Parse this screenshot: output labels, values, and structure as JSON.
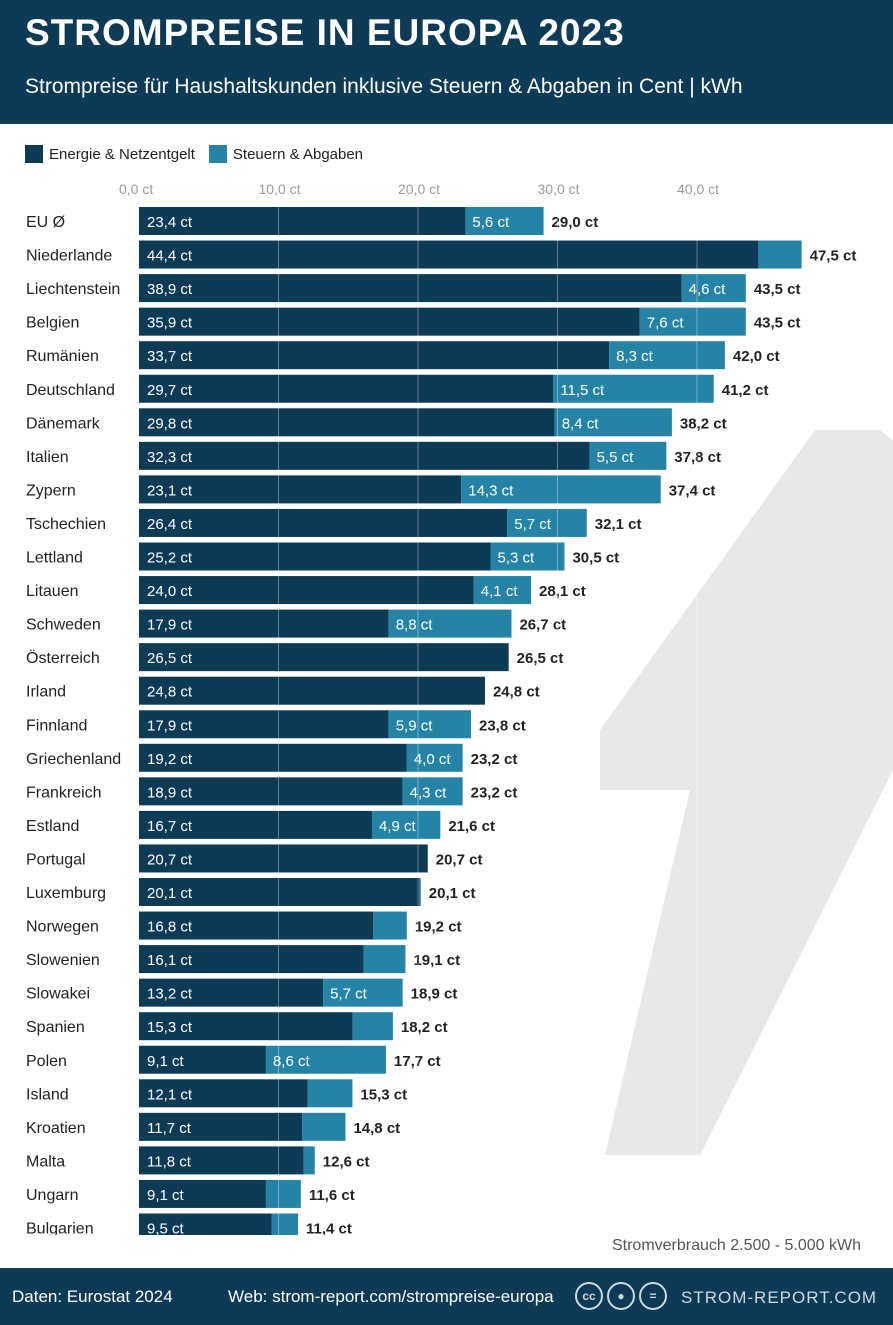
{
  "header": {
    "title": "STROMPREISE IN EUROPA 2023",
    "subtitle": "Strompreise für Haushaltskunden inklusive Steuern & Abgaben in Cent | kWh"
  },
  "colors": {
    "dark": "#0d3a55",
    "light": "#2584a6",
    "header": "#0d3a55"
  },
  "legend": {
    "energy": "Energie & Netzentgelt",
    "taxes": "Steuern & Abgaben"
  },
  "chart_data": {
    "type": "bar",
    "orientation": "horizontal",
    "stacked": true,
    "xlim": [
      0,
      47.5
    ],
    "ticks": [
      0,
      10,
      20,
      30,
      40
    ],
    "tick_labels": [
      "0,0 ct",
      "10,0 ct",
      "20,0 ct",
      "30,0 ct",
      "40,0 ct"
    ],
    "categories": [
      "EU Ø",
      "Niederlande",
      "Liechtenstein",
      "Belgien",
      "Rumänien",
      "Deutschland",
      "Dänemark",
      "Italien",
      "Zypern",
      "Tschechien",
      "Lettland",
      "Litauen",
      "Schweden",
      "Österreich",
      "Irland",
      "Finnland",
      "Griechenland",
      "Frankreich",
      "Estland",
      "Portugal",
      "Luxemburg",
      "Norwegen",
      "Slowenien",
      "Slowakei",
      "Spanien",
      "Polen",
      "Island",
      "Kroatien",
      "Malta",
      "Ungarn",
      "Bulgarien"
    ],
    "series": [
      {
        "name": "Energie & Netzentgelt",
        "values": [
          23.4,
          44.4,
          38.9,
          35.9,
          33.7,
          29.7,
          29.8,
          32.3,
          23.1,
          26.4,
          25.2,
          24.0,
          17.9,
          26.5,
          24.8,
          17.9,
          19.2,
          18.9,
          16.7,
          20.7,
          20.1,
          16.8,
          16.1,
          13.2,
          15.3,
          9.1,
          12.1,
          11.7,
          11.8,
          9.1,
          9.5
        ],
        "labels": [
          "23,4 ct",
          "44,4 ct",
          "38,9 ct",
          "35,9 ct",
          "33,7 ct",
          "29,7 ct",
          "29,8 ct",
          "32,3 ct",
          "23,1 ct",
          "26,4 ct",
          "25,2 ct",
          "24,0 ct",
          "17,9 ct",
          "26,5 ct",
          "24,8 ct",
          "17,9 ct",
          "19,2 ct",
          "18,9 ct",
          "16,7 ct",
          "20,7 ct",
          "20,1 ct",
          "16,8 ct",
          "16,1 ct",
          "13,2 ct",
          "15,3 ct",
          "9,1 ct",
          "12,1 ct",
          "11,7 ct",
          "11,8 ct",
          "9,1 ct",
          "9,5 ct"
        ]
      },
      {
        "name": "Steuern & Abgaben",
        "values": [
          5.6,
          3.1,
          4.6,
          7.6,
          8.3,
          11.5,
          8.4,
          5.5,
          14.3,
          5.7,
          5.3,
          4.1,
          8.8,
          0,
          0,
          5.9,
          4.0,
          4.3,
          4.9,
          0,
          0.1,
          2.4,
          3.0,
          5.7,
          2.9,
          8.6,
          3.2,
          3.1,
          0.8,
          2.5,
          1.9
        ],
        "labels": [
          "5,6 ct",
          "",
          "4,6 ct",
          "7,6 ct",
          "8,3 ct",
          "11,5 ct",
          "8,4 ct",
          "5,5 ct",
          "14,3 ct",
          "5,7 ct",
          "5,3 ct",
          "4,1 ct",
          "8,8 ct",
          "",
          "",
          "5,9 ct",
          "4,0 ct",
          "4,3 ct",
          "4,9 ct",
          "",
          "",
          "",
          "",
          "5,7 ct",
          "",
          "8,6 ct",
          "",
          "",
          "",
          "",
          ""
        ]
      }
    ],
    "totals": [
      "29,0 ct",
      "47,5 ct",
      "43,5 ct",
      "43,5 ct",
      "42,0 ct",
      "41,2 ct",
      "38,2 ct",
      "37,8 ct",
      "37,4 ct",
      "32,1 ct",
      "30,5 ct",
      "28,1 ct",
      "26,7 ct",
      "26,5 ct",
      "24,8 ct",
      "23,8 ct",
      "23,2 ct",
      "23,2 ct",
      "21,6 ct",
      "20,7 ct",
      "20,1 ct",
      "19,2 ct",
      "19,1 ct",
      "18,9 ct",
      "18,2 ct",
      "17,7 ct",
      "15,3 ct",
      "14,8 ct",
      "12,6 ct",
      "11,6 ct",
      "11,4 ct"
    ]
  },
  "note": "Stromverbrauch 2.500 - 5.000 kWh",
  "footer": {
    "source": "Daten: Eurostat 2024",
    "web": "Web: strom-report.com/strompreise-europa",
    "icons": [
      "cc-icon",
      "by-icon",
      "nd-icon"
    ],
    "brand": "STROM-REPORT.COM"
  }
}
